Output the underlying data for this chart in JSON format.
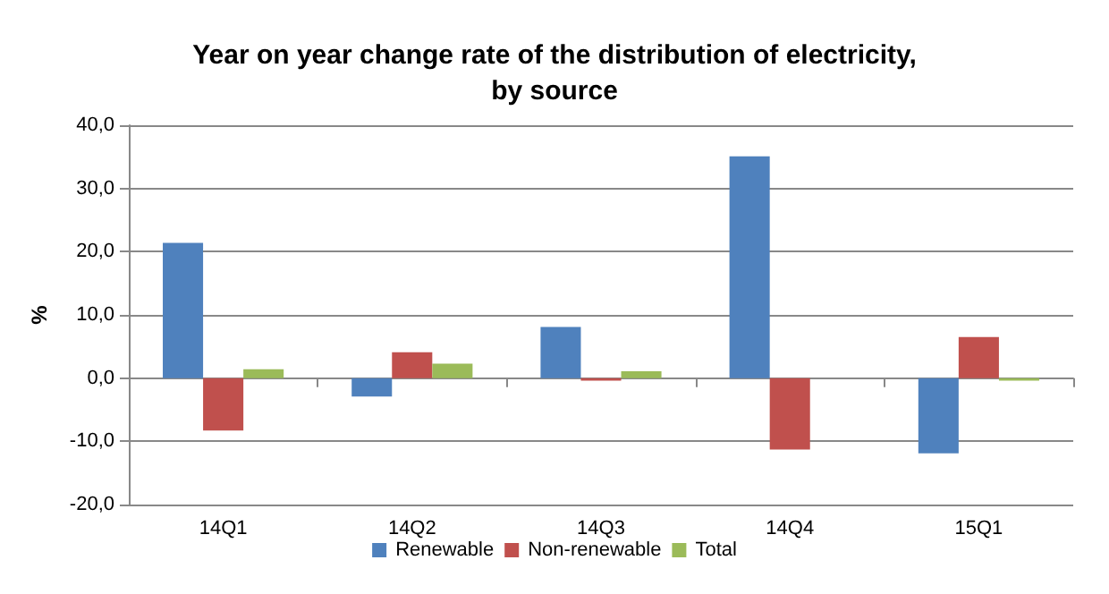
{
  "chart_data": {
    "type": "bar",
    "title": "Year on year change rate of the distribution of electricity,\nby source",
    "ylabel": "%",
    "categories": [
      "14Q1",
      "14Q2",
      "14Q3",
      "14Q4",
      "15Q1"
    ],
    "series": [
      {
        "name": "Renewable",
        "color": "#4f81bd",
        "values": [
          21.4,
          -2.9,
          8.1,
          35.1,
          -11.9
        ]
      },
      {
        "name": "Non-renewable",
        "color": "#c0504d",
        "values": [
          -8.3,
          4.1,
          -0.4,
          -11.3,
          6.5
        ]
      },
      {
        "name": "Total",
        "color": "#9bbb59",
        "values": [
          1.4,
          2.3,
          1.1,
          0.0,
          -0.4
        ]
      }
    ],
    "ylim": [
      -20,
      40
    ],
    "yticks": [
      {
        "value": -20,
        "label": "-20,0"
      },
      {
        "value": -10,
        "label": "-10,0"
      },
      {
        "value": 0,
        "label": "0,0"
      },
      {
        "value": 10,
        "label": "10,0"
      },
      {
        "value": 20,
        "label": "20,0"
      },
      {
        "value": 30,
        "label": "30,0"
      },
      {
        "value": 40,
        "label": "40,0"
      }
    ],
    "grid": "y",
    "legend": "bottom"
  }
}
